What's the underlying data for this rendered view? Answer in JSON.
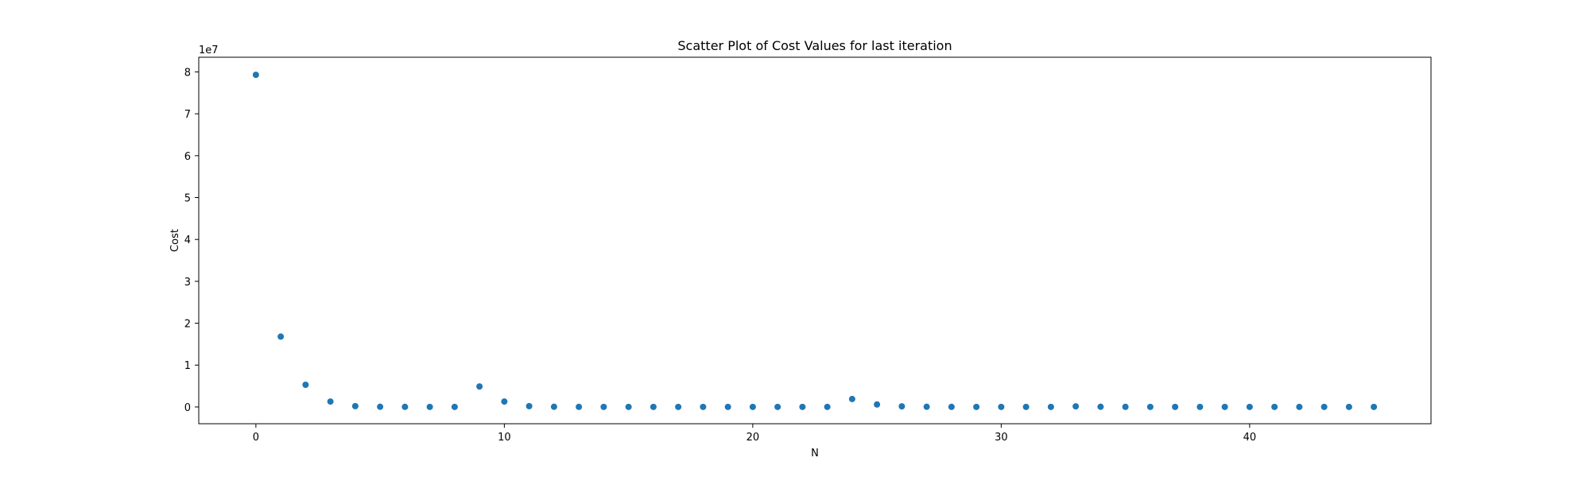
{
  "chart_data": {
    "type": "scatter",
    "title": "Scatter Plot of Cost Values for last iteration",
    "xlabel": "N",
    "ylabel": "Cost",
    "y_offset_text": "1e7",
    "xlim": [
      -2.3,
      47.3
    ],
    "ylim": [
      -4000000,
      83500000
    ],
    "xticks": [
      0,
      10,
      20,
      30,
      40
    ],
    "xtick_labels": [
      "0",
      "10",
      "20",
      "30",
      "40"
    ],
    "yticks": [
      0,
      10000000,
      20000000,
      30000000,
      40000000,
      50000000,
      60000000,
      70000000,
      80000000
    ],
    "ytick_labels": [
      "0",
      "1",
      "2",
      "3",
      "4",
      "5",
      "6",
      "7",
      "8"
    ],
    "grid": false,
    "legend": "none",
    "marker_color": "#1f77b4",
    "series": [
      {
        "x": [
          0,
          1,
          2,
          3,
          4,
          5,
          6,
          7,
          8,
          9,
          10,
          11,
          12,
          13,
          14,
          15,
          16,
          17,
          18,
          19,
          20,
          21,
          22,
          23,
          24,
          25,
          26,
          27,
          28,
          29,
          30,
          31,
          32,
          33,
          34,
          35,
          36,
          37,
          38,
          39,
          40,
          41,
          42,
          43,
          44,
          45
        ],
        "y": [
          79300000,
          16800000,
          5300000,
          1300000,
          200000,
          50000,
          30000,
          20000,
          20000,
          4900000,
          1300000,
          200000,
          50000,
          30000,
          20000,
          20000,
          20000,
          20000,
          20000,
          20000,
          20000,
          20000,
          20000,
          20000,
          1900000,
          600000,
          150000,
          50000,
          30000,
          20000,
          20000,
          20000,
          20000,
          150000,
          50000,
          30000,
          20000,
          20000,
          20000,
          20000,
          20000,
          20000,
          20000,
          20000,
          20000,
          20000
        ]
      }
    ]
  }
}
